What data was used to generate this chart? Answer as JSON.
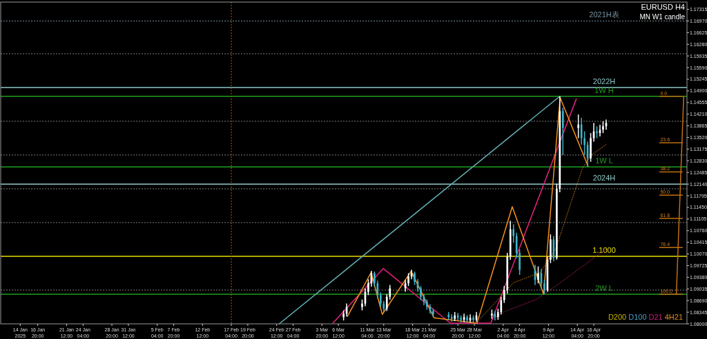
{
  "chart_data": {
    "type": "candlestick",
    "title": "EURUSD H4",
    "subtitle": "MN W1 candle",
    "x": [
      "2025-03-07T08:00",
      "2025-03-07T20:00",
      "2025-03-10T08:00",
      "2025-03-10T20:00",
      "2025-03-11T08:00",
      "2025-03-11T20:00",
      "2025-03-12T08:00",
      "2025-03-12T20:00",
      "2025-03-13T08:00",
      "2025-03-13T20:00",
      "2025-03-14T08:00",
      "2025-03-14T20:00",
      "2025-03-17T08:00",
      "2025-03-17T20:00",
      "2025-03-18T08:00",
      "2025-03-18T20:00",
      "2025-03-19T08:00",
      "2025-03-19T20:00",
      "2025-03-20T08:00",
      "2025-03-20T20:00",
      "2025-03-21T08:00",
      "2025-03-21T20:00",
      "2025-03-24T08:00",
      "2025-03-24T20:00",
      "2025-03-25T08:00",
      "2025-03-25T20:00",
      "2025-03-26T08:00",
      "2025-03-26T20:00",
      "2025-03-27T08:00",
      "2025-03-27T20:00",
      "2025-03-28T08:00",
      "2025-03-28T20:00",
      "2025-03-31T08:00",
      "2025-03-31T20:00",
      "2025-04-01T08:00",
      "2025-04-01T20:00",
      "2025-04-02T08:00",
      "2025-04-02T20:00",
      "2025-04-03T08:00",
      "2025-04-03T20:00",
      "2025-04-04T08:00",
      "2025-04-04T20:00",
      "2025-04-07T08:00",
      "2025-04-07T20:00",
      "2025-04-08T08:00",
      "2025-04-08T20:00",
      "2025-04-09T08:00",
      "2025-04-09T20:00",
      "2025-04-10T08:00",
      "2025-04-10T20:00",
      "2025-04-11T08:00",
      "2025-04-11T20:00",
      "2025-04-14T08:00",
      "2025-04-14T20:00",
      "2025-04-15T08:00",
      "2025-04-15T20:00",
      "2025-04-16T08:00",
      "2025-04-16T20:00",
      "2025-04-17T08:00",
      "2025-04-17T20:00",
      "2025-04-18T08:00",
      "2025-04-18T20:00"
    ],
    "ohlc": [
      [
        1.082,
        1.084,
        1.081,
        1.083
      ],
      [
        1.083,
        1.086,
        1.0822,
        1.085
      ],
      [
        1.085,
        1.0872,
        1.084,
        1.086
      ],
      [
        1.086,
        1.0905,
        1.0852,
        1.0895
      ],
      [
        1.0895,
        1.0932,
        1.0885,
        1.092
      ],
      [
        1.092,
        1.0957,
        1.091,
        1.095
      ],
      [
        1.095,
        1.0955,
        1.091,
        1.092
      ],
      [
        1.092,
        1.0928,
        1.0875,
        1.0885
      ],
      [
        1.0885,
        1.0893,
        1.085,
        1.086
      ],
      [
        1.086,
        1.0868,
        1.0835,
        1.0845
      ],
      [
        1.0845,
        1.0888,
        1.0838,
        1.088
      ],
      [
        1.088,
        1.0915,
        1.0872,
        1.0905
      ],
      [
        1.0905,
        1.093,
        1.0895,
        1.092
      ],
      [
        1.092,
        1.095,
        1.0912,
        1.094
      ],
      [
        1.094,
        1.096,
        1.0932,
        1.095
      ],
      [
        1.095,
        1.0955,
        1.0915,
        1.0925
      ],
      [
        1.0925,
        1.0932,
        1.0895,
        1.0905
      ],
      [
        1.0905,
        1.0912,
        1.087,
        1.088
      ],
      [
        1.088,
        1.0888,
        1.0855,
        1.0865
      ],
      [
        1.0865,
        1.0872,
        1.0842,
        1.085
      ],
      [
        1.085,
        1.0858,
        1.083,
        1.0838
      ],
      [
        1.0838,
        1.0845,
        1.082,
        1.0828
      ],
      [
        1.0828,
        1.0835,
        1.0812,
        1.082
      ],
      [
        1.082,
        1.0828,
        1.0806,
        1.0815
      ],
      [
        1.0815,
        1.0835,
        1.0808,
        1.0825
      ],
      [
        1.0825,
        1.0832,
        1.081,
        1.0818
      ],
      [
        1.0818,
        1.0825,
        1.0804,
        1.0812
      ],
      [
        1.0812,
        1.083,
        1.0805,
        1.082
      ],
      [
        1.082,
        1.0826,
        1.0803,
        1.081
      ],
      [
        1.081,
        1.0828,
        1.0804,
        1.0818
      ],
      [
        1.0818,
        1.0825,
        1.0805,
        1.0812
      ],
      [
        1.0812,
        1.0835,
        1.0806,
        1.0825
      ],
      [
        1.0825,
        1.0842,
        1.0815,
        1.083
      ],
      [
        1.083,
        1.0838,
        1.081,
        1.082
      ],
      [
        1.082,
        1.0845,
        1.0812,
        1.0835
      ],
      [
        1.0835,
        1.088,
        1.0828,
        1.087
      ],
      [
        1.087,
        1.0912,
        1.0862,
        1.09
      ],
      [
        1.09,
        1.101,
        1.089,
        1.1
      ],
      [
        1.1,
        1.1105,
        1.099,
        1.108
      ],
      [
        1.108,
        1.1095,
        1.104,
        1.106
      ],
      [
        1.106,
        1.107,
        1.0995,
        1.101
      ],
      [
        1.101,
        1.102,
        1.0945,
        1.096
      ],
      [
        1.096,
        1.0975,
        1.0915,
        1.093
      ],
      [
        1.093,
        1.097,
        1.092,
        1.095
      ],
      [
        1.095,
        1.0962,
        1.0905,
        1.092
      ],
      [
        1.092,
        1.093,
        1.0889,
        1.09
      ],
      [
        1.09,
        1.1,
        1.0895,
        1.099
      ],
      [
        1.099,
        1.1065,
        1.098,
        1.105
      ],
      [
        1.105,
        1.106,
        1.0985,
        1.0995
      ],
      [
        1.0995,
        1.1215,
        1.099,
        1.12
      ],
      [
        1.12,
        1.1474,
        1.119,
        1.143
      ],
      [
        1.143,
        1.144,
        1.13,
        1.138
      ],
      [
        1.138,
        1.142,
        1.135,
        1.139
      ],
      [
        1.139,
        1.141,
        1.133,
        1.135
      ],
      [
        1.135,
        1.137,
        1.13,
        1.133
      ],
      [
        1.133,
        1.134,
        1.1266,
        1.129
      ],
      [
        1.129,
        1.1365,
        1.128,
        1.135
      ],
      [
        1.135,
        1.1395,
        1.134,
        1.137
      ],
      [
        1.137,
        1.1385,
        1.135,
        1.1365
      ],
      [
        1.1365,
        1.139,
        1.1355,
        1.1375
      ],
      [
        1.1375,
        1.14,
        1.1365,
        1.1385
      ],
      [
        1.1385,
        1.1405,
        1.1375,
        1.1395
      ]
    ],
    "colors": [
      "#ffffff",
      "#ffffff",
      "#ffffff",
      "#ffffff",
      "#ffffff",
      "#ffffff",
      "#3fb4c8",
      "#3fb4c8",
      "#3fb4c8",
      "#3fb4c8",
      "#ffffff",
      "#ffffff",
      "#ffffff",
      "#ffffff",
      "#ffffff",
      "#3fb4c8",
      "#3fb4c8",
      "#3fb4c8",
      "#3fb4c8",
      "#3fb4c8",
      "#3fb4c8",
      "#3fb4c8",
      "#3fb4c8",
      "#3fb4c8",
      "#ffffff",
      "#3fb4c8",
      "#3fb4c8",
      "#ffffff",
      "#3fb4c8",
      "#ffffff",
      "#3fb4c8",
      "#ffffff",
      "#ffffff",
      "#3fb4c8",
      "#ffffff",
      "#ffffff",
      "#ffffff",
      "#ffffff",
      "#ffffff",
      "#3fb4c8",
      "#3fb4c8",
      "#3fb4c8",
      "#3fb4c8",
      "#ffffff",
      "#3fb4c8",
      "#3fb4c8",
      "#ffffff",
      "#ffffff",
      "#3fb4c8",
      "#ffffff",
      "#ffffff",
      "#3fb4c8",
      "#ffffff",
      "#3fb4c8",
      "#3fb4c8",
      "#3fb4c8",
      "#ffffff",
      "#ffffff",
      "#3fb4c8",
      "#ffffff",
      "#ffffff",
      "#ffffff"
    ],
    "series": [
      {
        "type": "line",
        "color": "#66b3b8",
        "x": [
          "2025-02-24T22:00",
          "2025-04-11T08:00"
        ],
        "values": [
          1.08,
          1.1474
        ]
      },
      {
        "type": "line",
        "color": "#e8217f",
        "x": [
          "2025-03-05T14:24",
          "2025-03-13T18:00",
          "2025-03-24T14:24",
          "2025-03-31T04:00",
          "2025-04-14T00:00"
        ],
        "values": [
          1.0802,
          1.0964,
          1.0802,
          1.0802,
          1.1466
        ]
      },
      {
        "type": "line",
        "color": "#f5901e",
        "x": [
          "2025-03-07T23:12",
          "2025-03-11T18:48",
          "2025-03-13T14:24",
          "2025-03-18T06:24",
          "2025-03-21T23:12",
          "2025-03-28T22:24",
          "2025-04-03T15:12",
          "2025-04-08T16:48",
          "2025-04-11T09:12",
          "2025-04-15T21:36"
        ],
        "values": [
          1.0822,
          1.0952,
          1.0828,
          1.0956,
          1.0818,
          1.0802,
          1.1147,
          1.0888,
          1.147,
          1.1267
        ]
      },
      {
        "type": "line",
        "color": "#c07010",
        "x": [
          "2025-05-01T09:12",
          "2025-04-30T04:48"
        ],
        "values": [
          1.1474,
          1.0888
        ]
      },
      {
        "type": "line",
        "color": "#c07010",
        "x": [
          "2025-04-27T12:00",
          "2025-05-01T04:00"
        ],
        "values": [
          1.1474,
          1.1474
        ]
      },
      {
        "type": "line",
        "color": "#c07010",
        "x": [
          "2025-04-27T12:00",
          "2025-05-01T04:00"
        ],
        "values": [
          1.1336,
          1.1336
        ]
      },
      {
        "type": "line",
        "color": "#c07010",
        "x": [
          "2025-04-27T12:00",
          "2025-05-01T04:00"
        ],
        "values": [
          1.125,
          1.125
        ]
      },
      {
        "type": "line",
        "color": "#c07010",
        "x": [
          "2025-04-27T12:00",
          "2025-05-01T04:00"
        ],
        "values": [
          1.1181,
          1.1181
        ]
      },
      {
        "type": "line",
        "color": "#c07010",
        "x": [
          "2025-04-27T12:00",
          "2025-05-01T04:00"
        ],
        "values": [
          1.1112,
          1.1112
        ]
      },
      {
        "type": "line",
        "color": "#c07010",
        "x": [
          "2025-04-27T12:00",
          "2025-05-01T04:00"
        ],
        "values": [
          1.1026,
          1.1026
        ]
      },
      {
        "type": "line",
        "color": "#c07010",
        "x": [
          "2025-04-27T12:00",
          "2025-05-01T04:00"
        ],
        "values": [
          1.0888,
          1.0888
        ]
      },
      {
        "type": "line",
        "name": "D200",
        "color": "#c8b400",
        "values": [
          null,
          null,
          null,
          null,
          null,
          null,
          null,
          null,
          null,
          null,
          null,
          null,
          null,
          null,
          null,
          null,
          null,
          null,
          null,
          null,
          null,
          null,
          null,
          null,
          null,
          null,
          null,
          null,
          null,
          null,
          null,
          null,
          null,
          null,
          null,
          null,
          null,
          null,
          null,
          null,
          null,
          null,
          null,
          null,
          null,
          null,
          null,
          null,
          null,
          null,
          null,
          null,
          null,
          null,
          null,
          null,
          null,
          null,
          null,
          null,
          null,
          null
        ]
      },
      {
        "type": "line",
        "name": "D100",
        "color": "#4aa0c8",
        "values": [
          null,
          null,
          null,
          null,
          null,
          null,
          null,
          null,
          null,
          null,
          null,
          null,
          null,
          null,
          null,
          null,
          null,
          null,
          null,
          null,
          null,
          null,
          null,
          null,
          null,
          null,
          null,
          null,
          null,
          null,
          null,
          null,
          null,
          null,
          null,
          null,
          null,
          null,
          null,
          null,
          null,
          null,
          null,
          null,
          null,
          null,
          null,
          null,
          null,
          null,
          null,
          null,
          null,
          null,
          null,
          null,
          null,
          null,
          null,
          null,
          null,
          null
        ]
      },
      {
        "type": "line",
        "name": "D21",
        "color": "#d0207a",
        "line_style": "dotted",
        "x": [
          "2025-03-31T04:00",
          "2025-04-02T08:00",
          "2025-04-07T12:00",
          "2025-04-10T16:00",
          "2025-04-18T20:00"
        ],
        "values": [
          1.081,
          1.0836,
          1.0872,
          1.0912,
          1.1022
        ]
      },
      {
        "type": "line",
        "name": "4H21",
        "color": "#e08a20",
        "line_style": "dotted",
        "x": [
          "2025-03-29T12:00",
          "2025-04-03T20:00",
          "2025-04-08T04:00",
          "2025-04-10T16:00",
          "2025-04-15T00:00",
          "2025-04-16T12:00",
          "2025-04-18T20:00"
        ],
        "values": [
          1.0816,
          1.0922,
          1.0952,
          1.1022,
          1.1261,
          1.1301,
          1.1331
        ]
      }
    ],
    "legend": "bottom right",
    "xlim": [
      "2025-01-10T20:00",
      "2025-05-01T22:00"
    ],
    "xticks": [
      {
        "value": "2025-01-14T00:00",
        "label": "14 Jan 2025"
      },
      {
        "value": "2025-01-16T20:00",
        "label": "16 Jan 20:00"
      },
      {
        "value": "2025-01-21T12:00",
        "label": "21 Jan 12:00"
      },
      {
        "value": "2025-01-24T04:00",
        "label": "24 Jan 04:00"
      },
      {
        "value": "2025-01-28T20:00",
        "label": "28 Jan 20:00"
      },
      {
        "value": "2025-01-31T12:00",
        "label": "31 Jan 12:00"
      },
      {
        "value": "2025-02-05T04:00",
        "label": "5 Feb 04:00"
      },
      {
        "value": "2025-02-07T20:00",
        "label": "7 Feb 20:00"
      },
      {
        "value": "2025-02-12T12:00",
        "label": "12 Feb 12:00"
      },
      {
        "value": "2025-02-17T04:00",
        "label": "17 Feb 04:00"
      },
      {
        "value": "2025-02-19T20:00",
        "label": "19 Feb 20:00"
      },
      {
        "value": "2025-02-24T12:00",
        "label": "24 Feb 12:00"
      },
      {
        "value": "2025-02-27T04:00",
        "label": "27 Feb 04:00"
      },
      {
        "value": "2025-03-03T20:00",
        "label": "3 Mar 20:00"
      },
      {
        "value": "2025-03-06T12:00",
        "label": "6 Mar 12:00"
      },
      {
        "value": "2025-03-11T04:00",
        "label": "11 Mar 04:00"
      },
      {
        "value": "2025-03-13T20:00",
        "label": "13 Mar 20:00"
      },
      {
        "value": "2025-03-18T12:00",
        "label": "18 Mar 12:00"
      },
      {
        "value": "2025-03-21T04:00",
        "label": "21 Mar 04:00"
      },
      {
        "value": "2025-03-25T20:00",
        "label": "25 Mar 20:00"
      },
      {
        "value": "2025-03-28T12:00",
        "label": "28 Mar 12:00"
      },
      {
        "value": "2025-04-02T04:00",
        "label": "2 Apr 04:00"
      },
      {
        "value": "2025-04-04T20:00",
        "label": "4 Apr 20:00"
      },
      {
        "value": "2025-04-09T12:00",
        "label": "9 Apr 12:00"
      },
      {
        "value": "2025-04-14T04:00",
        "label": "14 Apr 04:00"
      },
      {
        "value": "2025-04-16T20:00",
        "label": "16 Apr 20:00"
      }
    ],
    "ylim": [
      1.08,
      1.1753
    ],
    "yticks": [
      {
        "value": 1.08,
        "label": "1.08000"
      },
      {
        "value": 1.08345,
        "label": "1.08345"
      },
      {
        "value": 1.0869,
        "label": "1.08690"
      },
      {
        "value": 1.09035,
        "label": "1.09035"
      },
      {
        "value": 1.0938,
        "label": "1.09380"
      },
      {
        "value": 1.09725,
        "label": "1.09725"
      },
      {
        "value": 1.1007,
        "label": "1.10070"
      },
      {
        "value": 1.10415,
        "label": "1.10415"
      },
      {
        "value": 1.1076,
        "label": "1.10760"
      },
      {
        "value": 1.11105,
        "label": "1.11105"
      },
      {
        "value": 1.1145,
        "label": "1.11450"
      },
      {
        "value": 1.11795,
        "label": "1.11795"
      },
      {
        "value": 1.1214,
        "label": "1.12140"
      },
      {
        "value": 1.12485,
        "label": "1.12485"
      },
      {
        "value": 1.1283,
        "label": "1.12830"
      },
      {
        "value": 1.13175,
        "label": "1.13175"
      },
      {
        "value": 1.1352,
        "label": "1.13520"
      },
      {
        "value": 1.13865,
        "label": "1.13865"
      },
      {
        "value": 1.1421,
        "label": "1.14210"
      },
      {
        "value": 1.14555,
        "label": "1.14555"
      },
      {
        "value": 1.149,
        "label": "1.14900"
      },
      {
        "value": 1.15245,
        "label": "1.15245"
      },
      {
        "value": 1.1559,
        "label": "1.15590"
      },
      {
        "value": 1.15935,
        "label": "1.15935"
      },
      {
        "value": 1.1628,
        "label": "1.16280"
      },
      {
        "value": 1.16625,
        "label": "1.16625"
      },
      {
        "value": 1.1697,
        "label": "1.16970"
      },
      {
        "value": 1.17315,
        "label": "1.17315"
      }
    ],
    "ref_lines": [
      {
        "axis": "y",
        "value": 1.1697,
        "label": "2021H表",
        "color": "#7890a0",
        "line_style": "dotted"
      },
      {
        "axis": "y",
        "value": 1.16,
        "label": null,
        "color": "#808080",
        "line_style": "dotted"
      },
      {
        "axis": "y",
        "value": 1.14,
        "label": null,
        "color": "#808080",
        "line_style": "dotted"
      },
      {
        "axis": "y",
        "value": 1.13,
        "label": null,
        "color": "#808080",
        "line_style": "dotted"
      },
      {
        "axis": "y",
        "value": 1.12,
        "label": null,
        "color": "#808080",
        "line_style": "dotted"
      },
      {
        "axis": "y",
        "value": 1.11,
        "label": null,
        "color": "#808080",
        "line_style": "dotted"
      },
      {
        "axis": "y",
        "value": 1.09,
        "label": null,
        "color": "#808080",
        "line_style": "dotted"
      },
      {
        "axis": "y",
        "value": 1.15,
        "label": "2022H",
        "color": "#8fc8c8",
        "line_style": "solid"
      },
      {
        "axis": "y",
        "value": 1.1214,
        "label": "2024H",
        "color": "#8fc8c8",
        "line_style": "solid"
      },
      {
        "axis": "y",
        "value": 1.1,
        "label": "1.1000",
        "color": "#e8e000",
        "line_style": "solid"
      },
      {
        "axis": "y",
        "value": 1.1474,
        "label": "1W H",
        "color": "#1f9f1f",
        "line_style": "solid"
      },
      {
        "axis": "y",
        "value": 1.1265,
        "label": "1W L",
        "color": "#1f9f1f",
        "line_style": "solid"
      },
      {
        "axis": "y",
        "value": 1.0888,
        "label": "2W L",
        "color": "#1f9f1f",
        "line_style": "solid"
      },
      {
        "axis": "x",
        "value": "2025-02-17T04:00",
        "label": null,
        "color": "#b06000",
        "line_style": "dotted"
      }
    ],
    "annotations": [
      {
        "text": "0.0",
        "x": "2025-04-27T12:00",
        "y": 1.1474
      },
      {
        "text": "23.6",
        "x": "2025-04-27T12:00",
        "y": 1.1336
      },
      {
        "text": "38.2",
        "x": "2025-04-27T12:00",
        "y": 1.125
      },
      {
        "text": "50.0",
        "x": "2025-04-27T12:00",
        "y": 1.1181
      },
      {
        "text": "61.8",
        "x": "2025-04-27T12:00",
        "y": 1.1112
      },
      {
        "text": "76.4",
        "x": "2025-04-27T12:00",
        "y": 1.1026
      },
      {
        "text": "100.0",
        "x": "2025-04-27T12:00",
        "y": 1.0888
      }
    ]
  }
}
